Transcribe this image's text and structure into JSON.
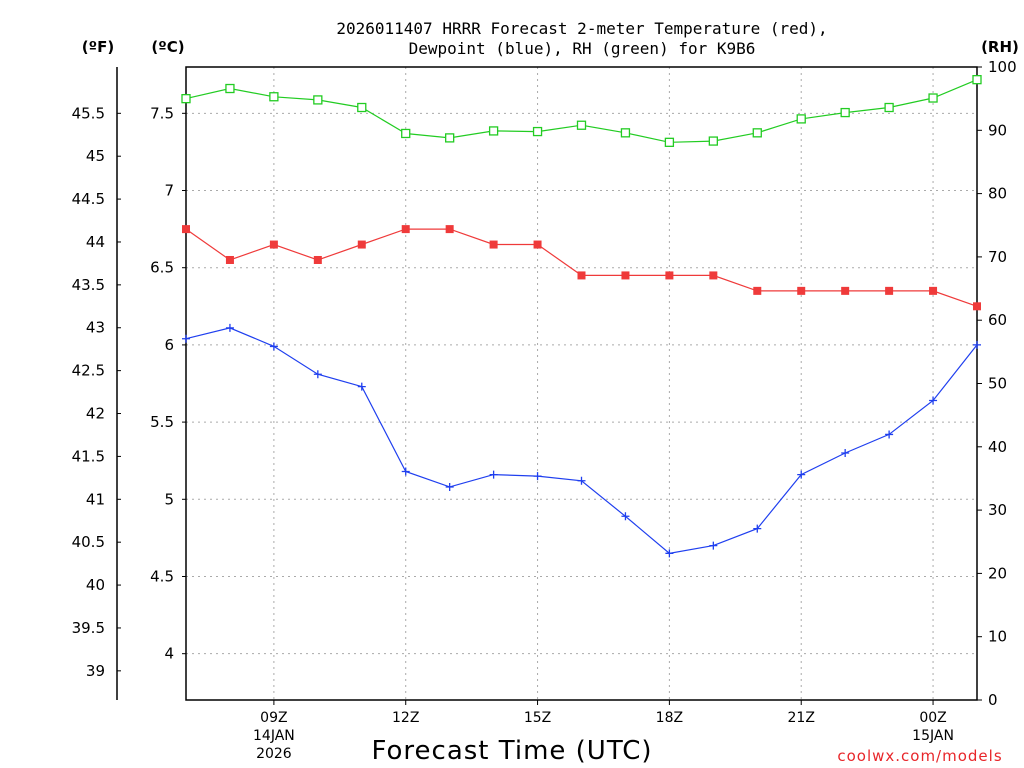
{
  "colors": {
    "temperature": "#ef3a3a",
    "dewpoint": "#1f3fef",
    "rh": "#22cc22",
    "grid": "#aaaaaa",
    "credit": "#e8262a"
  },
  "chart_data": {
    "type": "line",
    "title": [
      "2026011407 HRRR Forecast 2-meter Temperature (red),",
      "Dewpoint (blue), RH (green) for K9B6"
    ],
    "xlabel": "Forecast Time (UTC)",
    "credit": "coolwx.com/models",
    "units": {
      "fahrenheit": "(ºF)",
      "celsius": "(ºC)",
      "rh": "(RH)"
    },
    "x_hours": [
      7,
      8,
      9,
      10,
      11,
      12,
      13,
      14,
      15,
      16,
      17,
      18,
      19,
      20,
      21,
      22,
      23,
      24,
      25
    ],
    "xlim_hours": [
      7,
      25
    ],
    "x_ticks": [
      {
        "hour": 9,
        "label": "09Z",
        "sub": [
          "14JAN",
          "2026"
        ]
      },
      {
        "hour": 12,
        "label": "12Z",
        "sub": []
      },
      {
        "hour": 15,
        "label": "15Z",
        "sub": []
      },
      {
        "hour": 18,
        "label": "18Z",
        "sub": []
      },
      {
        "hour": 21,
        "label": "21Z",
        "sub": []
      },
      {
        "hour": 24,
        "label": "00Z",
        "sub": [
          "15JAN"
        ]
      }
    ],
    "celsius_axis": {
      "ylim": [
        3.7,
        7.8
      ],
      "ticks": [
        "4",
        "4.5",
        "5",
        "5.5",
        "6",
        "6.5",
        "7",
        "7.5"
      ]
    },
    "fahrenheit_axis": {
      "ticks": [
        "39",
        "39.5",
        "40",
        "40.5",
        "41",
        "41.5",
        "42",
        "42.5",
        "43",
        "43.5",
        "44",
        "44.5",
        "45",
        "45.5"
      ]
    },
    "rh_axis": {
      "ylim": [
        0,
        100
      ],
      "ticks": [
        "0",
        "10",
        "20",
        "30",
        "40",
        "50",
        "60",
        "70",
        "80",
        "90",
        "100"
      ]
    },
    "series": [
      {
        "name": "Temperature",
        "unit": "C",
        "marker": "filled-square",
        "values": [
          6.75,
          6.55,
          6.65,
          6.55,
          6.65,
          6.75,
          6.75,
          6.65,
          6.65,
          6.45,
          6.45,
          6.45,
          6.45,
          6.35,
          6.35,
          6.35,
          6.35,
          6.35,
          6.25
        ]
      },
      {
        "name": "Dewpoint",
        "unit": "C",
        "marker": "plus",
        "values": [
          6.04,
          6.11,
          5.99,
          5.81,
          5.73,
          5.18,
          5.08,
          5.16,
          5.15,
          5.12,
          4.89,
          4.65,
          4.7,
          4.81,
          5.16,
          5.3,
          5.42,
          5.64,
          6.0
        ]
      },
      {
        "name": "RH",
        "unit": "%",
        "marker": "open-square",
        "values": [
          95.0,
          96.6,
          95.3,
          94.8,
          93.6,
          89.5,
          88.8,
          89.9,
          89.8,
          90.8,
          89.6,
          88.1,
          88.3,
          89.6,
          91.8,
          92.8,
          93.6,
          95.1,
          98.0
        ]
      }
    ]
  }
}
